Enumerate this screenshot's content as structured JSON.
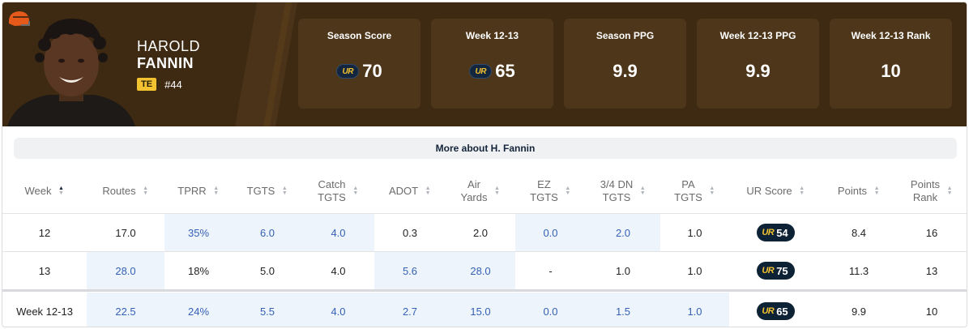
{
  "player": {
    "first_name": "HAROLD",
    "last_name": "FANNIN",
    "position": "TE",
    "jersey": "#44"
  },
  "team": {
    "logo": "browns-helmet-logo",
    "primary_color": "#3e2a12",
    "accent_color": "#f2c230"
  },
  "stat_cards": [
    {
      "label": "Season Score",
      "value": "70",
      "has_ur_icon": true
    },
    {
      "label": "Week 12-13",
      "value": "65",
      "has_ur_icon": true
    },
    {
      "label": "Season PPG",
      "value": "9.9",
      "has_ur_icon": false
    },
    {
      "label": "Week 12-13 PPG",
      "value": "9.9",
      "has_ur_icon": false
    },
    {
      "label": "Week 12-13 Rank",
      "value": "10",
      "has_ur_icon": false
    }
  ],
  "ur_logo_text": "UR",
  "more_button": "More about H. Fannin",
  "table": {
    "headers": [
      {
        "line1": "Week",
        "line2": ""
      },
      {
        "line1": "Routes",
        "line2": ""
      },
      {
        "line1": "TPRR",
        "line2": ""
      },
      {
        "line1": "TGTS",
        "line2": ""
      },
      {
        "line1": "Catch",
        "line2": "TGTS"
      },
      {
        "line1": "ADOT",
        "line2": ""
      },
      {
        "line1": "Air",
        "line2": "Yards"
      },
      {
        "line1": "EZ",
        "line2": "TGTS"
      },
      {
        "line1": "3/4 DN",
        "line2": "TGTS"
      },
      {
        "line1": "PA",
        "line2": "TGTS"
      },
      {
        "line1": "UR Score",
        "line2": ""
      },
      {
        "line1": "Points",
        "line2": ""
      },
      {
        "line1": "Points",
        "line2": "Rank"
      }
    ],
    "rows": [
      {
        "cells": [
          "12",
          "17.0",
          "35%",
          "6.0",
          "4.0",
          "0.3",
          "2.0",
          "0.0",
          "2.0",
          "1.0",
          "54",
          "8.4",
          "16"
        ]
      },
      {
        "cells": [
          "13",
          "28.0",
          "18%",
          "5.0",
          "4.0",
          "5.6",
          "28.0",
          "-",
          "1.0",
          "1.0",
          "75",
          "11.3",
          "13"
        ]
      }
    ],
    "summary": {
      "cells": [
        "Week 12-13",
        "22.5",
        "24%",
        "5.5",
        "4.0",
        "2.7",
        "15.0",
        "0.0",
        "1.5",
        "1.0",
        "65",
        "9.9",
        "10"
      ]
    },
    "sort_column": "Week"
  }
}
